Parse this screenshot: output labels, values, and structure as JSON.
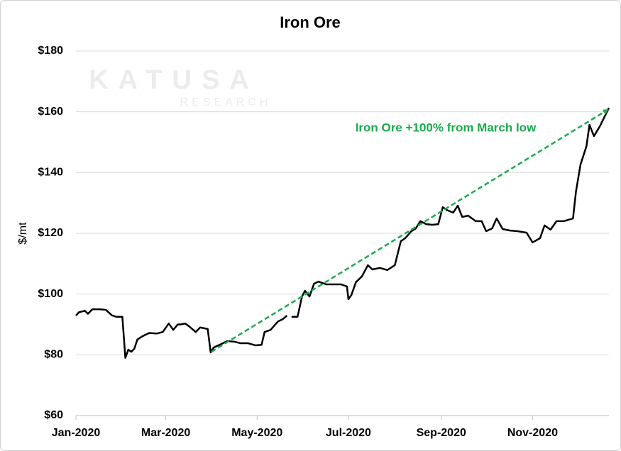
{
  "chart_data": {
    "type": "line",
    "title": "Iron Ore",
    "ylabel": "$/mt",
    "watermark": [
      "KATUSA",
      "RESEARCH"
    ],
    "xlim": [
      0,
      356
    ],
    "xticks": [
      {
        "value": 0,
        "label": "Jan-2020"
      },
      {
        "value": 60,
        "label": "Mar-2020"
      },
      {
        "value": 121,
        "label": "May-2020"
      },
      {
        "value": 182,
        "label": "Jul-2020"
      },
      {
        "value": 244,
        "label": "Sep-2020"
      },
      {
        "value": 305,
        "label": "Nov-2020"
      }
    ],
    "ylim": [
      60,
      180
    ],
    "yticks": [
      {
        "value": 60,
        "label": "$60"
      },
      {
        "value": 80,
        "label": "$80"
      },
      {
        "value": 100,
        "label": "$100"
      },
      {
        "value": 120,
        "label": "$120"
      },
      {
        "value": 140,
        "label": "$140"
      },
      {
        "value": 160,
        "label": "$160"
      },
      {
        "value": 180,
        "label": "$180"
      }
    ],
    "grid": true,
    "x": [
      0,
      2,
      6,
      8,
      11,
      16,
      20,
      24,
      27,
      31,
      33,
      35,
      37,
      39,
      41,
      44,
      49,
      54,
      58,
      62,
      65,
      68,
      70,
      73,
      76,
      80,
      83,
      88,
      90,
      92,
      96,
      101,
      106,
      110,
      115,
      120,
      124,
      126,
      130,
      135,
      138,
      141,
      142,
      144,
      148,
      151,
      153,
      156,
      159,
      162,
      167,
      172,
      177,
      181,
      182,
      184,
      187,
      191,
      195,
      198,
      203,
      208,
      213,
      217,
      220,
      224,
      227,
      230,
      234,
      238,
      242,
      245,
      248,
      252,
      255,
      258,
      262,
      267,
      271,
      274,
      278,
      281,
      285,
      290,
      295,
      301,
      305,
      310,
      313,
      317,
      321,
      326,
      332,
      334,
      337,
      341,
      343,
      346,
      350,
      356
    ],
    "series": [
      {
        "name": "Iron Ore",
        "color": "#000000",
        "values": [
          92.9,
          94,
          94.5,
          93.5,
          95,
          95,
          94.8,
          93,
          92.5,
          92.5,
          79,
          81.7,
          81,
          82,
          85,
          86,
          87.2,
          87,
          87.5,
          90.3,
          88.2,
          90,
          90,
          90.3,
          89.2,
          87.5,
          89,
          88.5,
          80.8,
          82.4,
          83.3,
          84.5,
          84.3,
          83.8,
          83.8,
          83.1,
          83.3,
          87.5,
          88.2,
          91,
          91.7,
          92.9,
          null,
          92.5,
          92.5,
          99.2,
          101.1,
          99.2,
          103.4,
          104.1,
          103.2,
          103.2,
          103.2,
          102.5,
          98.3,
          99.7,
          103.9,
          105.8,
          109.5,
          108.1,
          108.6,
          107.9,
          109.5,
          117.4,
          118.4,
          120.7,
          121.6,
          124,
          123,
          122.8,
          123,
          128.6,
          127.6,
          126.8,
          129.1,
          125.4,
          125.8,
          124,
          124,
          120.7,
          121.6,
          124.9,
          121.4,
          120.9,
          120.7,
          120.2,
          117,
          118.4,
          122.6,
          121.2,
          124,
          124,
          124.9,
          133.8,
          142.6,
          148.7,
          155.7,
          152,
          155.3,
          161.3
        ]
      }
    ],
    "annotation": {
      "text": "Iron Ore +100% from March low",
      "color": "#1aab4b",
      "x_start": 90.5,
      "y_start": 81,
      "x_end": 355,
      "y_end": 160.6
    }
  }
}
